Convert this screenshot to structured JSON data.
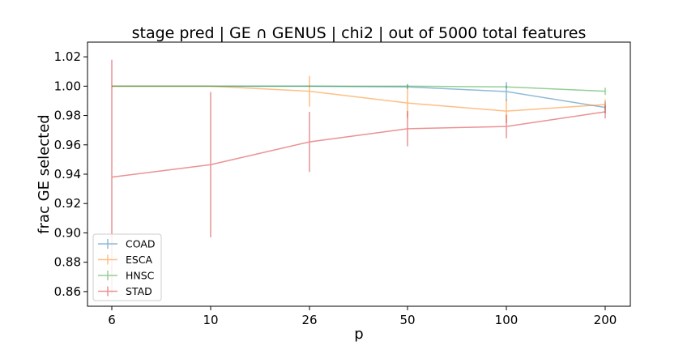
{
  "chart_data": {
    "type": "line",
    "title": "stage pred | GE ∩ GENUS | chi2 | out of 5000 total features",
    "xlabel": "p",
    "ylabel": "frac GE selected",
    "categories": [
      "6",
      "10",
      "26",
      "50",
      "100",
      "200"
    ],
    "ylim": [
      0.85,
      1.03
    ],
    "yticks": [
      0.86,
      0.88,
      0.9,
      0.92,
      0.94,
      0.96,
      0.98,
      1.0,
      1.02
    ],
    "ytick_labels": [
      "0.86",
      "0.88",
      "0.90",
      "0.92",
      "0.94",
      "0.96",
      "0.98",
      "1.00",
      "1.02"
    ],
    "grid": false,
    "legend_position": "lower-left",
    "series": [
      {
        "name": "COAD",
        "color": "#1f77b4",
        "values": [
          1.0,
          1.0,
          1.0,
          0.9995,
          0.9963,
          0.9855
        ],
        "errors": [
          0,
          0,
          0.0005,
          0.0015,
          0.0065,
          0.004
        ]
      },
      {
        "name": "ESCA",
        "color": "#ff7f0e",
        "values": [
          1.0,
          1.0,
          0.9965,
          0.9885,
          0.983,
          0.9875
        ],
        "errors": [
          0,
          0.0005,
          0.0105,
          0.01,
          0.008,
          0.0035
        ]
      },
      {
        "name": "HNSC",
        "color": "#2ca02c",
        "values": [
          1.0,
          1.0,
          1.0,
          1.0,
          0.9995,
          0.9965
        ],
        "errors": [
          0,
          0,
          0,
          0.0015,
          0.001,
          0.0025
        ]
      },
      {
        "name": "STAD",
        "color": "#d62728",
        "values": [
          0.938,
          0.9465,
          0.962,
          0.971,
          0.9725,
          0.9825
        ],
        "errors": [
          0.08,
          0.0495,
          0.0205,
          0.012,
          0.008,
          0.0045
        ]
      }
    ]
  }
}
